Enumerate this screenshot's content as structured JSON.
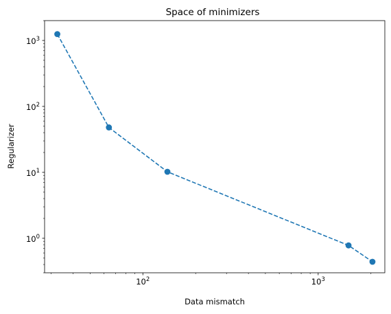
{
  "chart_data": {
    "type": "line",
    "title": "Space of minimizers",
    "xlabel": "Data mismatch",
    "ylabel": "Regularizer",
    "xscale": "log",
    "yscale": "log",
    "xlim": [
      27.5,
      2400
    ],
    "ylim": [
      0.3,
      2000
    ],
    "x_ticks": [
      {
        "value": 100,
        "base": "10",
        "exp": "2"
      },
      {
        "value": 1000,
        "base": "10",
        "exp": "3"
      }
    ],
    "y_ticks": [
      {
        "value": 1,
        "base": "10",
        "exp": "0"
      },
      {
        "value": 10,
        "base": "10",
        "exp": "1"
      },
      {
        "value": 100,
        "base": "10",
        "exp": "2"
      },
      {
        "value": 1000,
        "base": "10",
        "exp": "3"
      }
    ],
    "grid": false,
    "legend": "none",
    "series": [
      {
        "x": [
          32.5,
          64,
          138,
          1490,
          2040
        ],
        "y": [
          1250,
          48,
          10.2,
          0.78,
          0.44
        ],
        "color": "#1f77b4",
        "linestyle": "dashed",
        "marker": "circle"
      }
    ]
  }
}
